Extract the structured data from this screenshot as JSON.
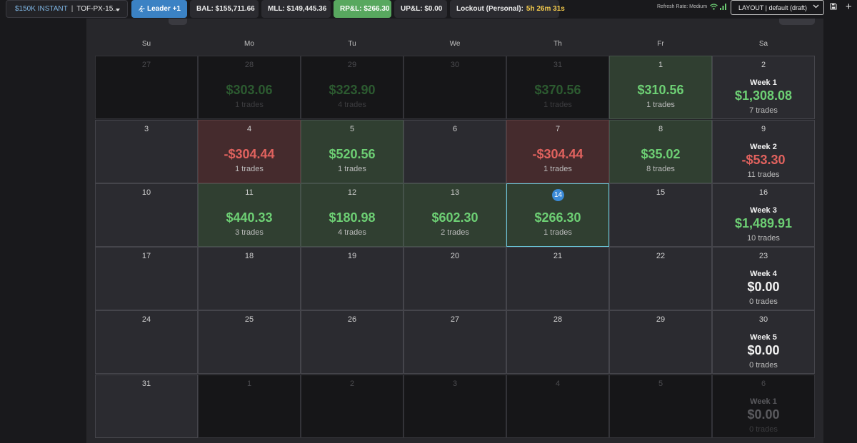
{
  "topbar": {
    "account_tier": "$150K INSTANT",
    "account_separator": "|",
    "account_name": "TOF-PX-15...",
    "leader_label": "Leader +1",
    "balance": "BAL: $155,711.66",
    "mll": "MLL: $149,445.36",
    "rpl": "RP&L: $266.30",
    "upl": "UP&L: $0.00",
    "lockout_label": "Lockout (Personal):",
    "lockout_time": "5h 26m 31s",
    "refresh_rate": "Refresh Rate: Medium",
    "layout_select": "LAYOUT | default (draft)",
    "colors": {
      "leader_bg": "#3b82c4",
      "rpl_bg": "#58a85f",
      "lockout_time": "#f2c94c"
    }
  },
  "calendar": {
    "weekdays": [
      "Su",
      "Mo",
      "Tu",
      "We",
      "Th",
      "Fr",
      "Sa"
    ],
    "weeks": [
      [
        {
          "date": "27",
          "state": "out"
        },
        {
          "date": "28",
          "state": "out",
          "amount": "$303.06",
          "tone": "g",
          "trades": "1 trades"
        },
        {
          "date": "29",
          "state": "out",
          "amount": "$323.90",
          "tone": "g",
          "trades": "4 trades"
        },
        {
          "date": "30",
          "state": "out"
        },
        {
          "date": "31",
          "state": "out",
          "amount": "$370.56",
          "tone": "g",
          "trades": "1 trades"
        },
        {
          "date": "1",
          "state": "pos",
          "amount": "$310.56",
          "tone": "g",
          "trades": "1 trades"
        },
        {
          "date": "2",
          "state": "wk",
          "week": "Week 1",
          "amount": "$1,308.08",
          "tone": "g",
          "trades": "7 trades"
        }
      ],
      [
        {
          "date": "3",
          "state": "in"
        },
        {
          "date": "4",
          "state": "neg",
          "amount": "-$304.44",
          "tone": "r",
          "trades": "1 trades"
        },
        {
          "date": "5",
          "state": "pos",
          "amount": "$520.56",
          "tone": "g",
          "trades": "1 trades"
        },
        {
          "date": "6",
          "state": "in"
        },
        {
          "date": "7",
          "state": "neg",
          "amount": "-$304.44",
          "tone": "r",
          "trades": "1 trades"
        },
        {
          "date": "8",
          "state": "pos",
          "amount": "$35.02",
          "tone": "g",
          "trades": "8 trades"
        },
        {
          "date": "9",
          "state": "wk",
          "week": "Week 2",
          "amount": "-$53.30",
          "tone": "r",
          "trades": "11 trades"
        }
      ],
      [
        {
          "date": "10",
          "state": "in"
        },
        {
          "date": "11",
          "state": "pos",
          "amount": "$440.33",
          "tone": "g",
          "trades": "3 trades"
        },
        {
          "date": "12",
          "state": "pos",
          "amount": "$180.98",
          "tone": "g",
          "trades": "4 trades"
        },
        {
          "date": "13",
          "state": "pos",
          "amount": "$602.30",
          "tone": "g",
          "trades": "2 trades"
        },
        {
          "date": "14",
          "state": "pos",
          "today": true,
          "amount": "$266.30",
          "tone": "g",
          "trades": "1 trades"
        },
        {
          "date": "15",
          "state": "in"
        },
        {
          "date": "16",
          "state": "wk",
          "week": "Week 3",
          "amount": "$1,489.91",
          "tone": "g",
          "trades": "10 trades"
        }
      ],
      [
        {
          "date": "17",
          "state": "in"
        },
        {
          "date": "18",
          "state": "in"
        },
        {
          "date": "19",
          "state": "in"
        },
        {
          "date": "20",
          "state": "in"
        },
        {
          "date": "21",
          "state": "in"
        },
        {
          "date": "22",
          "state": "in"
        },
        {
          "date": "23",
          "state": "wk",
          "week": "Week 4",
          "amount": "$0.00",
          "tone": "w",
          "trades": "0 trades"
        }
      ],
      [
        {
          "date": "24",
          "state": "in"
        },
        {
          "date": "25",
          "state": "in"
        },
        {
          "date": "26",
          "state": "in"
        },
        {
          "date": "27",
          "state": "in"
        },
        {
          "date": "28",
          "state": "in"
        },
        {
          "date": "29",
          "state": "in"
        },
        {
          "date": "30",
          "state": "wk",
          "week": "Week 5",
          "amount": "$0.00",
          "tone": "w",
          "trades": "0 trades"
        }
      ],
      [
        {
          "date": "31",
          "state": "in"
        },
        {
          "date": "1",
          "state": "out"
        },
        {
          "date": "2",
          "state": "out"
        },
        {
          "date": "3",
          "state": "out"
        },
        {
          "date": "4",
          "state": "out"
        },
        {
          "date": "5",
          "state": "out"
        },
        {
          "date": "6",
          "state": "outwk",
          "week": "Week 1",
          "amount": "$0.00",
          "tone": "w",
          "trades": "0 trades"
        }
      ]
    ]
  }
}
